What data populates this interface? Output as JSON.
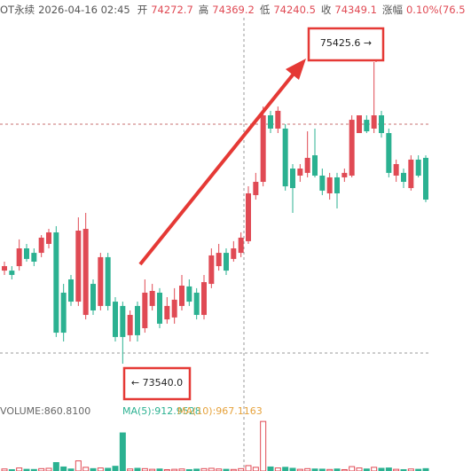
{
  "chart_data": {
    "type": "candlestick",
    "header": {
      "symbol": "OT永续",
      "datetime": "2026-04-16 02:45",
      "fields": [
        {
          "label": "开",
          "value": 74272.7
        },
        {
          "label": "高",
          "value": 74369.2
        },
        {
          "label": "低",
          "value": 74240.5
        },
        {
          "label": "收",
          "value": 74349.1
        },
        {
          "label": "涨幅",
          "value": "0.10%(76.5"
        }
      ]
    },
    "annotations": [
      "75425.6 →",
      "← 73540.0"
    ],
    "volume_legend": [
      "VOLUME:860.8100",
      "MA(5):912.9528",
      "MA(10):967.1163"
    ],
    "ylim": [
      73346,
      75814
    ],
    "volume_ylim": [
      0,
      2000
    ],
    "up_color": "#e04a54",
    "down_color": "#2bb191",
    "open": [
      74122,
      74122,
      74150,
      74261,
      74233,
      74233,
      74289,
      74361,
      73984,
      74067,
      73928,
      73845,
      74039,
      73901,
      74206,
      73928,
      73901,
      73718,
      73901,
      73762,
      73901,
      73984,
      73817,
      73829,
      73901,
      74023,
      73984,
      73845,
      74039,
      74150,
      74233,
      74195,
      74233,
      74306,
      74594,
      74677,
      75093,
      75010,
      75010,
      74760,
      74716,
      74733,
      74843,
      74716,
      74605,
      74705,
      74705,
      74716,
      74982,
      75065,
      75010,
      75093,
      74982,
      74716,
      74733,
      74638,
      74816,
      74827
    ],
    "high": [
      74178,
      74150,
      74317,
      74289,
      74261,
      74344,
      74383,
      74400,
      74039,
      74095,
      74455,
      74483,
      74067,
      74233,
      74233,
      73956,
      73928,
      73873,
      73928,
      74067,
      74039,
      74012,
      73956,
      74012,
      74095,
      74067,
      74012,
      74095,
      74261,
      74289,
      74261,
      74306,
      74361,
      74649,
      74733,
      75148,
      75121,
      75148,
      75038,
      74788,
      74788,
      74993,
      75010,
      74760,
      74733,
      74733,
      74760,
      75093,
      75093,
      75093,
      75426,
      75121,
      75010,
      74816,
      74760,
      74843,
      74843,
      74843
    ],
    "low": [
      74095,
      74067,
      74122,
      74178,
      74150,
      74206,
      74261,
      73707,
      73679,
      73901,
      73901,
      73817,
      73845,
      73873,
      73873,
      73679,
      73540,
      73679,
      73679,
      73734,
      73873,
      73762,
      73790,
      73790,
      73873,
      73901,
      73817,
      73817,
      74012,
      74122,
      74095,
      74178,
      74206,
      74289,
      74566,
      74649,
      74982,
      74982,
      74622,
      74483,
      74677,
      74705,
      74705,
      74594,
      74566,
      74511,
      74677,
      74705,
      74982,
      74982,
      74982,
      74954,
      74705,
      74677,
      74638,
      74622,
      74705,
      74550
    ],
    "close": [
      74150,
      74095,
      74261,
      74195,
      74178,
      74328,
      74361,
      73734,
      73734,
      73928,
      74372,
      74383,
      73873,
      74206,
      73901,
      73707,
      73707,
      73845,
      73718,
      73984,
      73995,
      73790,
      73901,
      73940,
      74028,
      73928,
      73845,
      74050,
      74217,
      74233,
      74122,
      74261,
      74328,
      74605,
      74677,
      75093,
      75010,
      75121,
      74649,
      74638,
      74760,
      74827,
      74716,
      74622,
      74705,
      74605,
      74733,
      75065,
      75093,
      74993,
      75093,
      74982,
      74733,
      74788,
      74677,
      74816,
      74716,
      74566
    ],
    "volume": [
      60,
      40,
      90,
      50,
      45,
      70,
      80,
      250,
      120,
      60,
      300,
      110,
      70,
      90,
      80,
      140,
      1130,
      60,
      80,
      70,
      50,
      60,
      40,
      50,
      60,
      40,
      55,
      70,
      80,
      60,
      50,
      45,
      70,
      160,
      110,
      1470,
      120,
      90,
      110,
      80,
      50,
      70,
      60,
      55,
      45,
      60,
      40,
      130,
      90,
      60,
      110,
      80,
      90,
      50,
      40,
      60,
      50,
      70
    ]
  }
}
